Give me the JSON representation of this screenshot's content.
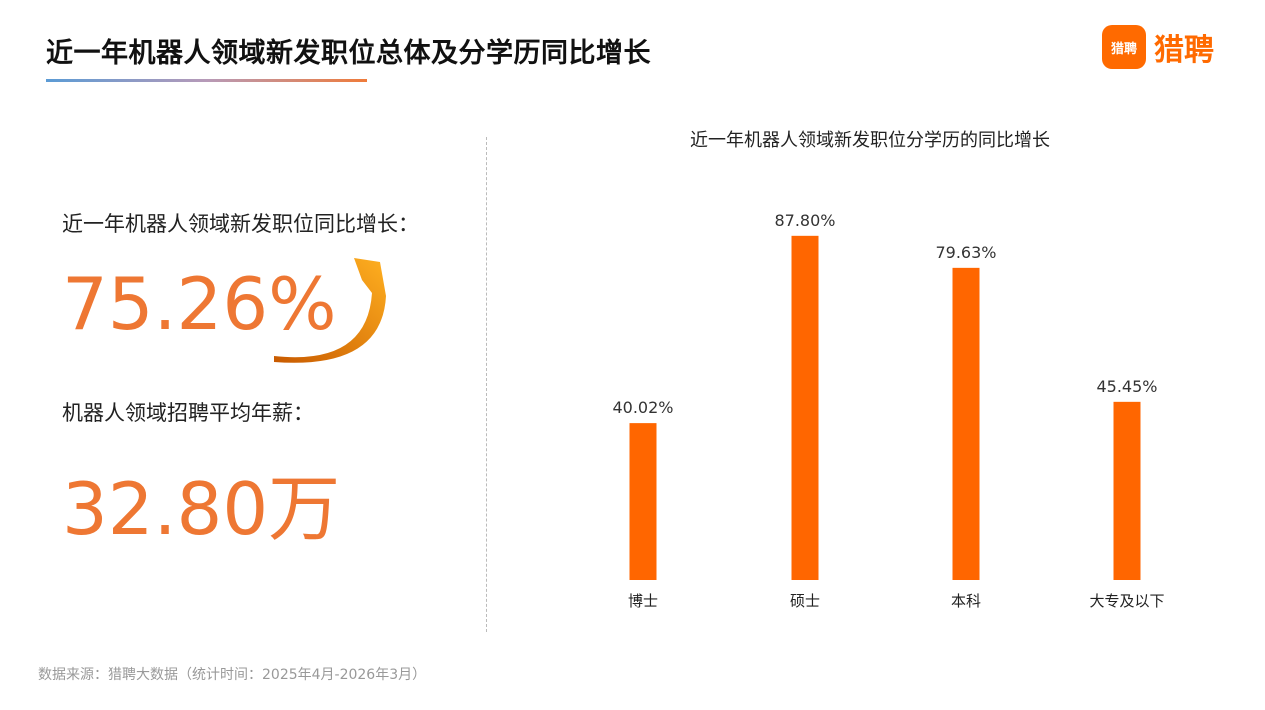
{
  "header": {
    "title": "近一年机器人领域新发职位总体及分学历同比增长",
    "logo_badge": "猎聘",
    "logo_text": "猎聘"
  },
  "left": {
    "growth_label": "近一年机器人领域新发职位同比增长：",
    "growth_value": "75.26%",
    "salary_label": "机器人领域招聘平均年薪：",
    "salary_value": "32.80万"
  },
  "chart_data": {
    "type": "bar",
    "title": "近一年机器人领域新发职位分学历的同比增长",
    "categories": [
      "博士",
      "硕士",
      "本科",
      "大专及以下"
    ],
    "values": [
      40.02,
      87.8,
      79.63,
      45.45
    ],
    "data_labels": [
      "40.02%",
      "87.80%",
      "79.63%",
      "45.45%"
    ],
    "bar_color": "#ff6600",
    "grid": false
  },
  "footer": {
    "source": "数据来源：猎聘大数据（统计时间：2025年4月-2026年3月）"
  }
}
